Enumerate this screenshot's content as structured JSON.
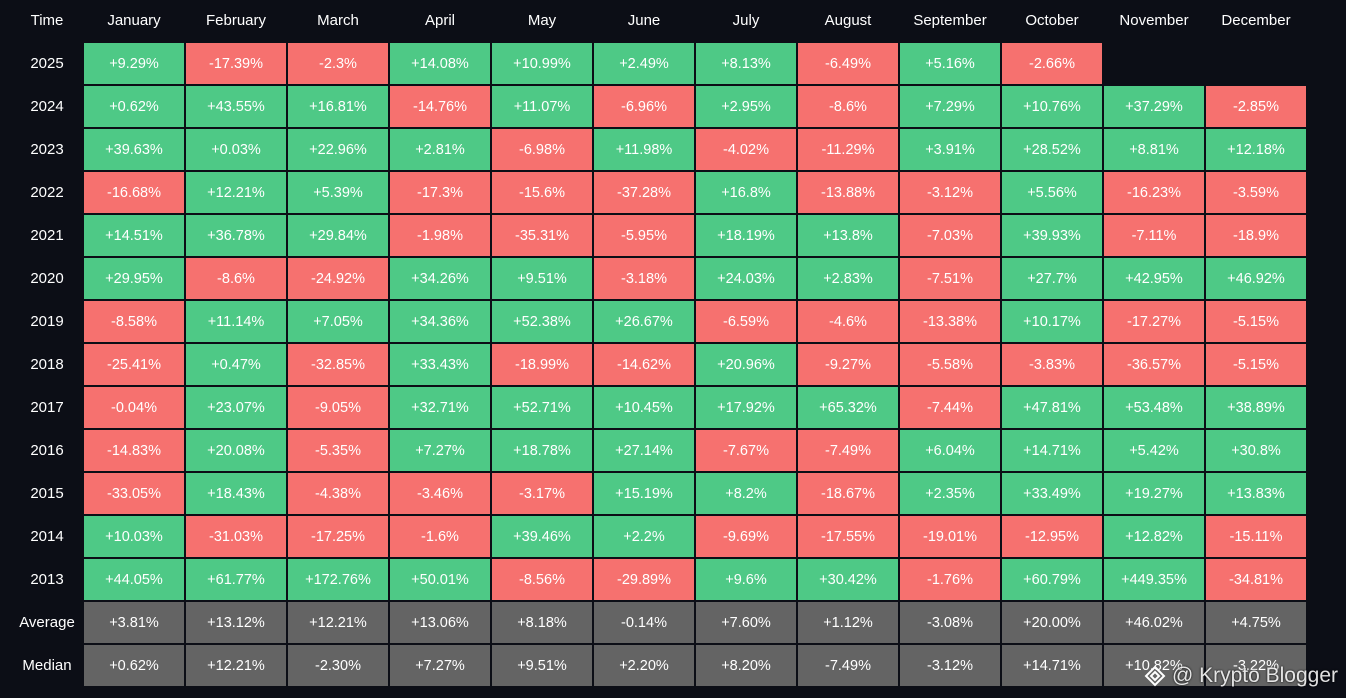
{
  "table": {
    "header": [
      "Time",
      "January",
      "February",
      "March",
      "April",
      "May",
      "June",
      "July",
      "August",
      "September",
      "October",
      "November",
      "December"
    ],
    "rows": [
      {
        "label": "2025",
        "cells": [
          "+9.29%",
          "-17.39%",
          "-2.3%",
          "+14.08%",
          "+10.99%",
          "+2.49%",
          "+8.13%",
          "-6.49%",
          "+5.16%",
          "-2.66%"
        ]
      },
      {
        "label": "2024",
        "cells": [
          "+0.62%",
          "+43.55%",
          "+16.81%",
          "-14.76%",
          "+11.07%",
          "-6.96%",
          "+2.95%",
          "-8.6%",
          "+7.29%",
          "+10.76%",
          "+37.29%",
          "-2.85%"
        ]
      },
      {
        "label": "2023",
        "cells": [
          "+39.63%",
          "+0.03%",
          "+22.96%",
          "+2.81%",
          "-6.98%",
          "+11.98%",
          "-4.02%",
          "-11.29%",
          "+3.91%",
          "+28.52%",
          "+8.81%",
          "+12.18%"
        ]
      },
      {
        "label": "2022",
        "cells": [
          "-16.68%",
          "+12.21%",
          "+5.39%",
          "-17.3%",
          "-15.6%",
          "-37.28%",
          "+16.8%",
          "-13.88%",
          "-3.12%",
          "+5.56%",
          "-16.23%",
          "-3.59%"
        ]
      },
      {
        "label": "2021",
        "cells": [
          "+14.51%",
          "+36.78%",
          "+29.84%",
          "-1.98%",
          "-35.31%",
          "-5.95%",
          "+18.19%",
          "+13.8%",
          "-7.03%",
          "+39.93%",
          "-7.11%",
          "-18.9%"
        ]
      },
      {
        "label": "2020",
        "cells": [
          "+29.95%",
          "-8.6%",
          "-24.92%",
          "+34.26%",
          "+9.51%",
          "-3.18%",
          "+24.03%",
          "+2.83%",
          "-7.51%",
          "+27.7%",
          "+42.95%",
          "+46.92%"
        ]
      },
      {
        "label": "2019",
        "cells": [
          "-8.58%",
          "+11.14%",
          "+7.05%",
          "+34.36%",
          "+52.38%",
          "+26.67%",
          "-6.59%",
          "-4.6%",
          "-13.38%",
          "+10.17%",
          "-17.27%",
          "-5.15%"
        ]
      },
      {
        "label": "2018",
        "cells": [
          "-25.41%",
          "+0.47%",
          "-32.85%",
          "+33.43%",
          "-18.99%",
          "-14.62%",
          "+20.96%",
          "-9.27%",
          "-5.58%",
          "-3.83%",
          "-36.57%",
          "-5.15%"
        ]
      },
      {
        "label": "2017",
        "cells": [
          "-0.04%",
          "+23.07%",
          "-9.05%",
          "+32.71%",
          "+52.71%",
          "+10.45%",
          "+17.92%",
          "+65.32%",
          "-7.44%",
          "+47.81%",
          "+53.48%",
          "+38.89%"
        ]
      },
      {
        "label": "2016",
        "cells": [
          "-14.83%",
          "+20.08%",
          "-5.35%",
          "+7.27%",
          "+18.78%",
          "+27.14%",
          "-7.67%",
          "-7.49%",
          "+6.04%",
          "+14.71%",
          "+5.42%",
          "+30.8%"
        ]
      },
      {
        "label": "2015",
        "cells": [
          "-33.05%",
          "+18.43%",
          "-4.38%",
          "-3.46%",
          "-3.17%",
          "+15.19%",
          "+8.2%",
          "-18.67%",
          "+2.35%",
          "+33.49%",
          "+19.27%",
          "+13.83%"
        ]
      },
      {
        "label": "2014",
        "cells": [
          "+10.03%",
          "-31.03%",
          "-17.25%",
          "-1.6%",
          "+39.46%",
          "+2.2%",
          "-9.69%",
          "-17.55%",
          "-19.01%",
          "-12.95%",
          "+12.82%",
          "-15.11%"
        ]
      },
      {
        "label": "2013",
        "cells": [
          "+44.05%",
          "+61.77%",
          "+172.76%",
          "+50.01%",
          "-8.56%",
          "-29.89%",
          "+9.6%",
          "+30.42%",
          "-1.76%",
          "+60.79%",
          "+449.35%",
          "-34.81%"
        ]
      }
    ],
    "summary": [
      {
        "label": "Average",
        "cells": [
          "+3.81%",
          "+13.12%",
          "+12.21%",
          "+13.06%",
          "+8.18%",
          "-0.14%",
          "+7.60%",
          "+1.12%",
          "-3.08%",
          "+20.00%",
          "+46.02%",
          "+4.75%"
        ]
      },
      {
        "label": "Median",
        "cells": [
          "+0.62%",
          "+12.21%",
          "-2.30%",
          "+7.27%",
          "+9.51%",
          "+2.20%",
          "+8.20%",
          "-7.49%",
          "-3.12%",
          "+14.71%",
          "+10.82%",
          "-3.22%"
        ]
      }
    ]
  },
  "watermark": "@ Krypto Blogger"
}
